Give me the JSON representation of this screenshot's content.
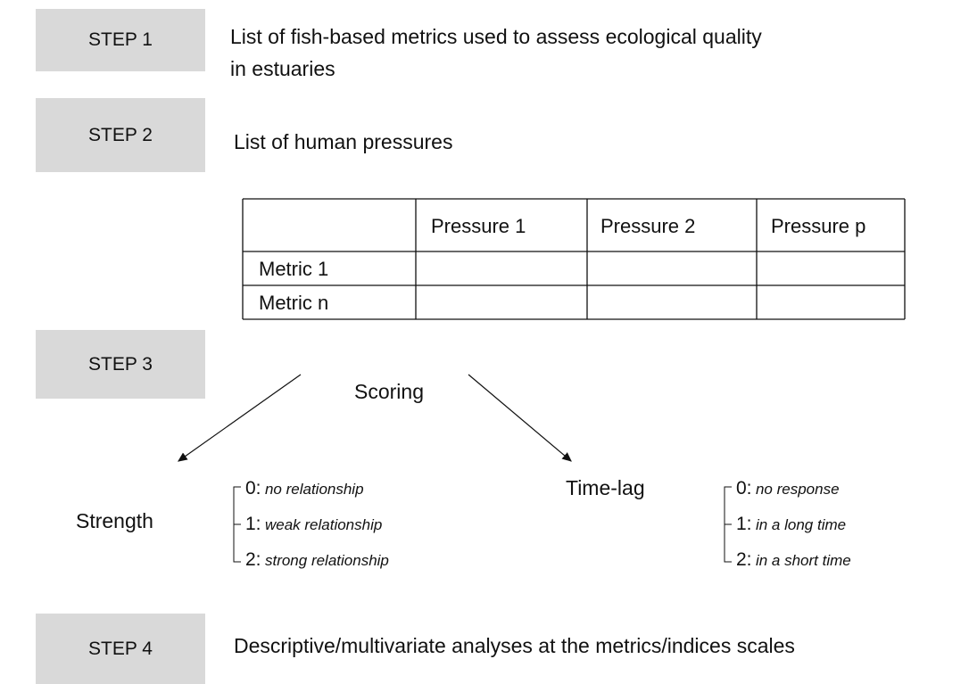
{
  "steps": [
    {
      "label": "STEP 1",
      "text": [
        "List of fish-based metrics used to assess ecological quality",
        "in estuaries"
      ]
    },
    {
      "label": "STEP 2",
      "text": [
        "List of human pressures"
      ]
    },
    {
      "label": "STEP 3"
    },
    {
      "label": "STEP 4",
      "text": [
        "Descriptive/multivariate analyses at the metrics/indices scales"
      ]
    }
  ],
  "table": {
    "header": [
      "",
      "Pressure 1",
      "Pressure 2",
      "Pressure p"
    ],
    "rows": [
      [
        "Metric 1",
        "",
        "",
        ""
      ],
      [
        "Metric n",
        "",
        "",
        ""
      ]
    ]
  },
  "scoring": {
    "title": "Scoring",
    "criteria": [
      {
        "name": "Strength",
        "levels": [
          {
            "code": "0:",
            "label": "no relationship"
          },
          {
            "code": "1:",
            "label": "weak relationship"
          },
          {
            "code": "2:",
            "label": "strong relationship"
          }
        ]
      },
      {
        "name": "Time-lag",
        "levels": [
          {
            "code": "0:",
            "label": "no response"
          },
          {
            "code": "1:",
            "label": "in a long time"
          },
          {
            "code": "2:",
            "label": "in a short time"
          }
        ]
      }
    ]
  }
}
